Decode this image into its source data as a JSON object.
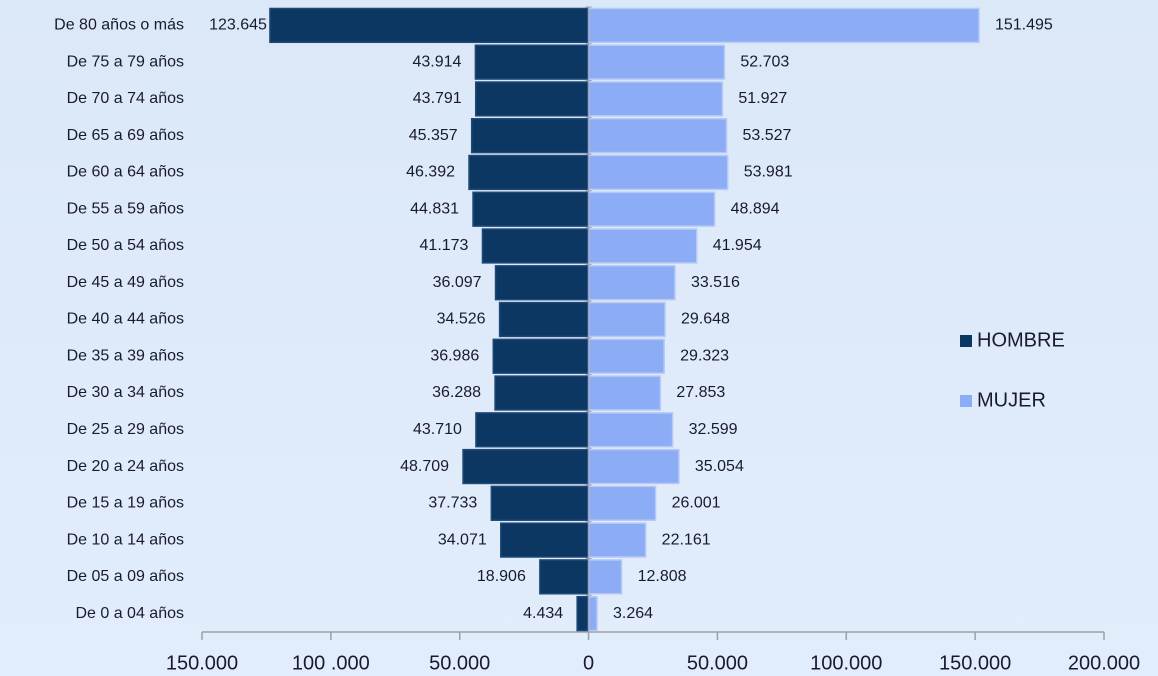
{
  "chart_data": {
    "type": "pyramid",
    "categories": [
      "De 80 años o más",
      "De 75 a 79 años",
      "De 70 a 74 años",
      "De 65 a 69 años",
      "De 60 a 64 años",
      "De 55 a 59 años",
      "De 50 a 54 años",
      "De 45 a 49 años",
      "De 40 a 44 años",
      "De 35 a 39 años",
      "De 30 a 34 años",
      "De 25 a 29 años",
      "De 20 a 24 años",
      "De 15 a 19 años",
      "De 10 a 14 años",
      "De 05 a 09 años",
      "De 0 a 04 años"
    ],
    "series": [
      {
        "name": "HOMBRE",
        "color": "#0b3762",
        "values": [
          123645,
          43914,
          43791,
          45357,
          46392,
          44831,
          41173,
          36097,
          34526,
          36986,
          36288,
          43710,
          48709,
          37733,
          34071,
          18906,
          4434
        ],
        "value_labels": [
          "123.645",
          "43.914",
          "43.791",
          "45.357",
          "46.392",
          "44.831",
          "41.173",
          "36.097",
          "34.526",
          "36.986",
          "36.288",
          "43.710",
          "48.709",
          "37.733",
          "34.071",
          "18.906",
          "4.434"
        ]
      },
      {
        "name": "MUJER",
        "color": "#8cacf5",
        "values": [
          151495,
          52703,
          51927,
          53527,
          53981,
          48894,
          41954,
          33516,
          29648,
          29323,
          27853,
          32599,
          35054,
          26001,
          22161,
          12808,
          3264
        ],
        "value_labels": [
          "151.495",
          "52.703",
          "51.927",
          "53.527",
          "53.981",
          "48.894",
          "41.954",
          "33.516",
          "29.648",
          "29.323",
          "27.853",
          "32.599",
          "35.054",
          "26.001",
          "22.161",
          "12.808",
          "3.264"
        ]
      }
    ],
    "xlim": [
      -150000,
      200000
    ],
    "xticks": [
      {
        "value": -150000,
        "label": "150.000"
      },
      {
        "value": -100000,
        "label": "100 .000"
      },
      {
        "value": -50000,
        "label": "50.000"
      },
      0,
      {
        "value": 50000,
        "label": "50.000"
      },
      {
        "value": 100000,
        "label": "100.000"
      },
      {
        "value": 150000,
        "label": "150.000"
      },
      {
        "value": 200000,
        "label": "200.000"
      }
    ],
    "legend": "right"
  }
}
